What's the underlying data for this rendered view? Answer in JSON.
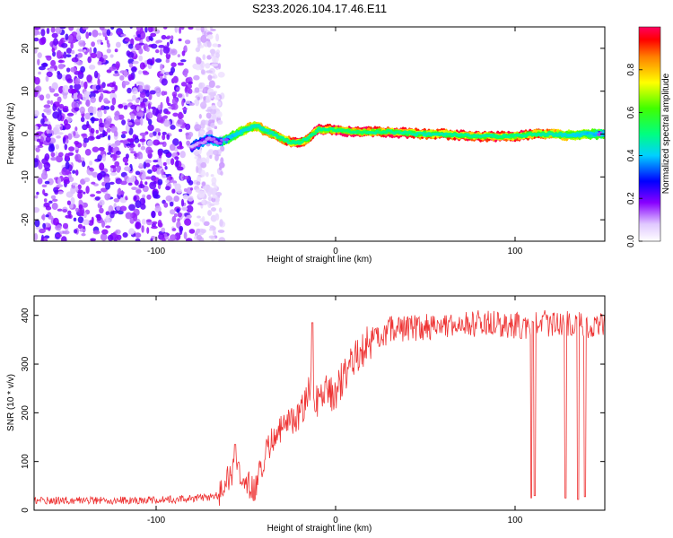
{
  "chart_data": [
    {
      "type": "heatmap",
      "title": "S233.2026.104.17.46.E11",
      "xlabel": "Height of straight line (km)",
      "ylabel": "Frequency (Hz)",
      "xlim": [
        -168,
        150
      ],
      "ylim": [
        -25,
        25
      ],
      "xticks": [
        -100,
        0,
        100
      ],
      "yticks": [
        -20,
        -10,
        0,
        10,
        20
      ],
      "colorbar": {
        "label": "Normalized spectral amplitude",
        "range": [
          0,
          1
        ],
        "ticks": [
          0.0,
          0.2,
          0.4,
          0.6,
          0.8
        ]
      },
      "noise_region": {
        "x_start": -168,
        "x_end": -65
      },
      "ridge": {
        "x": [
          -80,
          -75,
          -70,
          -65,
          -60,
          -55,
          -50,
          -45,
          -40,
          -35,
          -30,
          -25,
          -20,
          -15,
          -10,
          -5,
          0,
          10,
          20,
          30,
          40,
          50,
          60,
          70,
          80,
          90,
          100,
          110,
          120,
          130,
          140,
          150
        ],
        "freq": [
          -3,
          -2,
          -1,
          -2,
          -1,
          0,
          1,
          2,
          1,
          0,
          -1,
          -2,
          -2,
          -1,
          1,
          1,
          1,
          0.5,
          0.5,
          0.5,
          0.2,
          0,
          0,
          -0.3,
          -0.5,
          -0.5,
          -0.5,
          0,
          0,
          -0.3,
          0,
          0
        ],
        "amplitude": [
          0.3,
          0.4,
          0.4,
          0.5,
          0.55,
          0.6,
          0.7,
          0.75,
          0.8,
          0.8,
          0.85,
          0.9,
          0.9,
          0.92,
          0.95,
          0.97,
          1.0,
          1.0,
          0.95,
          0.95,
          0.9,
          0.85,
          0.85,
          0.9,
          0.9,
          0.9,
          0.95,
          0.9,
          0.8,
          0.7,
          0.6,
          0.55
        ]
      }
    },
    {
      "type": "line",
      "xlabel": "Height of straight line (km)",
      "ylabel": "SNR (10 * v/v)",
      "xlim": [
        -168,
        150
      ],
      "ylim": [
        0,
        440
      ],
      "xticks": [
        -100,
        0,
        100
      ],
      "yticks": [
        0,
        100,
        200,
        300,
        400
      ],
      "color": "#ee3333",
      "series": [
        {
          "name": "SNR",
          "x": [
            -168,
            -150,
            -130,
            -110,
            -90,
            -75,
            -65,
            -58,
            -50,
            -45,
            -40,
            -35,
            -30,
            -20,
            -15,
            -10,
            -5,
            0,
            5,
            10,
            20,
            30,
            40,
            50,
            60,
            70,
            80,
            90,
            100,
            110,
            120,
            130,
            140,
            150
          ],
          "y": [
            20,
            20,
            20,
            20,
            22,
            25,
            30,
            80,
            60,
            45,
            110,
            150,
            170,
            190,
            260,
            220,
            240,
            240,
            280,
            310,
            350,
            370,
            375,
            375,
            380,
            380,
            385,
            385,
            380,
            380,
            385,
            385,
            380,
            385
          ]
        }
      ],
      "spikes": [
        {
          "x": -13,
          "y": 385
        },
        {
          "x": -56,
          "y": 135
        }
      ],
      "dropouts": [
        {
          "x": 109,
          "y": 25
        },
        {
          "x": 111,
          "y": 30
        },
        {
          "x": 128,
          "y": 25
        },
        {
          "x": 135,
          "y": 22
        },
        {
          "x": 139,
          "y": 28
        }
      ]
    }
  ]
}
